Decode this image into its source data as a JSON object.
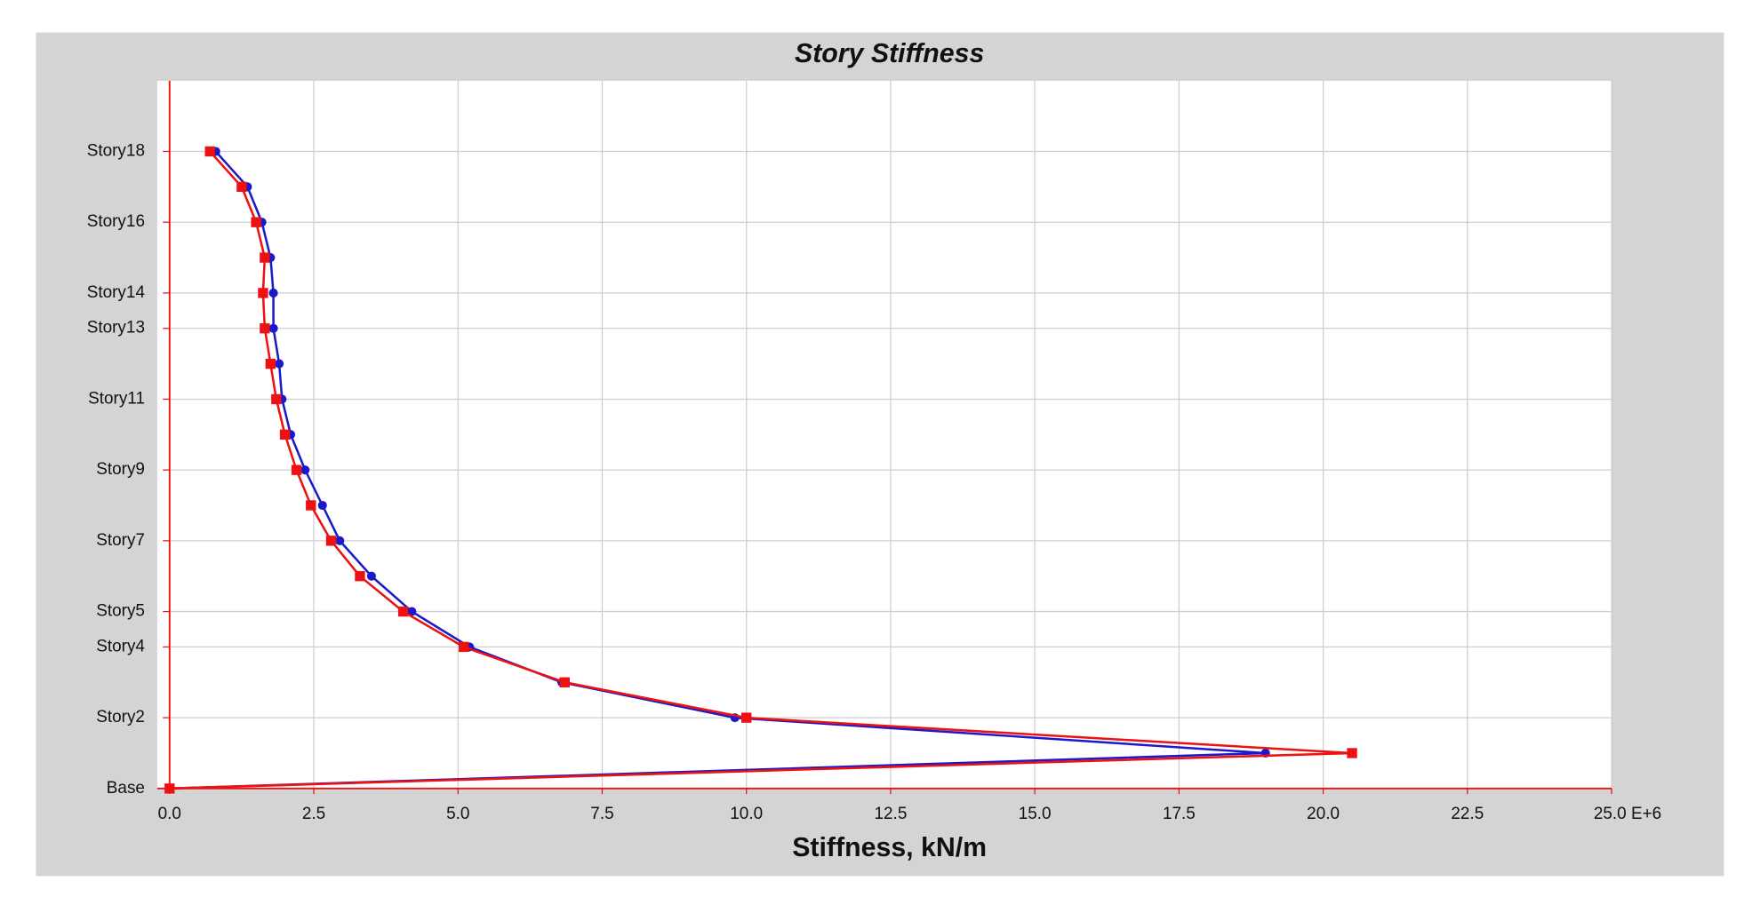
{
  "chart_data": {
    "type": "line",
    "orientation": "horizontal",
    "title": "Story Stiffness",
    "x_label": "Stiffness, kN/m",
    "categories": [
      "Base",
      null,
      "Story2",
      null,
      "Story4",
      "Story5",
      null,
      "Story7",
      null,
      "Story9",
      null,
      "Story11",
      null,
      "Story13",
      "Story14",
      null,
      "Story16",
      null,
      "Story18"
    ],
    "series": [
      {
        "name": "Blue",
        "color": "#1a1acc",
        "marker": "circle",
        "values": [
          0,
          19.0,
          9.8,
          6.8,
          5.2,
          4.2,
          3.5,
          2.95,
          2.65,
          2.35,
          2.1,
          1.95,
          1.9,
          1.8,
          1.8,
          1.75,
          1.6,
          1.35,
          0.8
        ]
      },
      {
        "name": "Red",
        "color": "#ee1111",
        "marker": "square",
        "values": [
          0,
          20.5,
          10.0,
          6.85,
          5.1,
          4.05,
          3.3,
          2.8,
          2.45,
          2.2,
          2.0,
          1.85,
          1.75,
          1.65,
          1.62,
          1.65,
          1.5,
          1.25,
          0.7
        ]
      }
    ],
    "xlim": [
      0,
      25
    ],
    "xticks": [
      {
        "value": 0,
        "label": "0.0"
      },
      {
        "value": 2.5,
        "label": "2.5"
      },
      {
        "value": 5,
        "label": "5.0"
      },
      {
        "value": 7.5,
        "label": "7.5"
      },
      {
        "value": 10,
        "label": "10.0"
      },
      {
        "value": 12.5,
        "label": "12.5"
      },
      {
        "value": 15,
        "label": "15.0"
      },
      {
        "value": 17.5,
        "label": "17.5"
      },
      {
        "value": 20,
        "label": "20.0"
      },
      {
        "value": 22.5,
        "label": "22.5"
      },
      {
        "value": 25,
        "label": "25.0 E+6"
      }
    ],
    "grid": true
  }
}
